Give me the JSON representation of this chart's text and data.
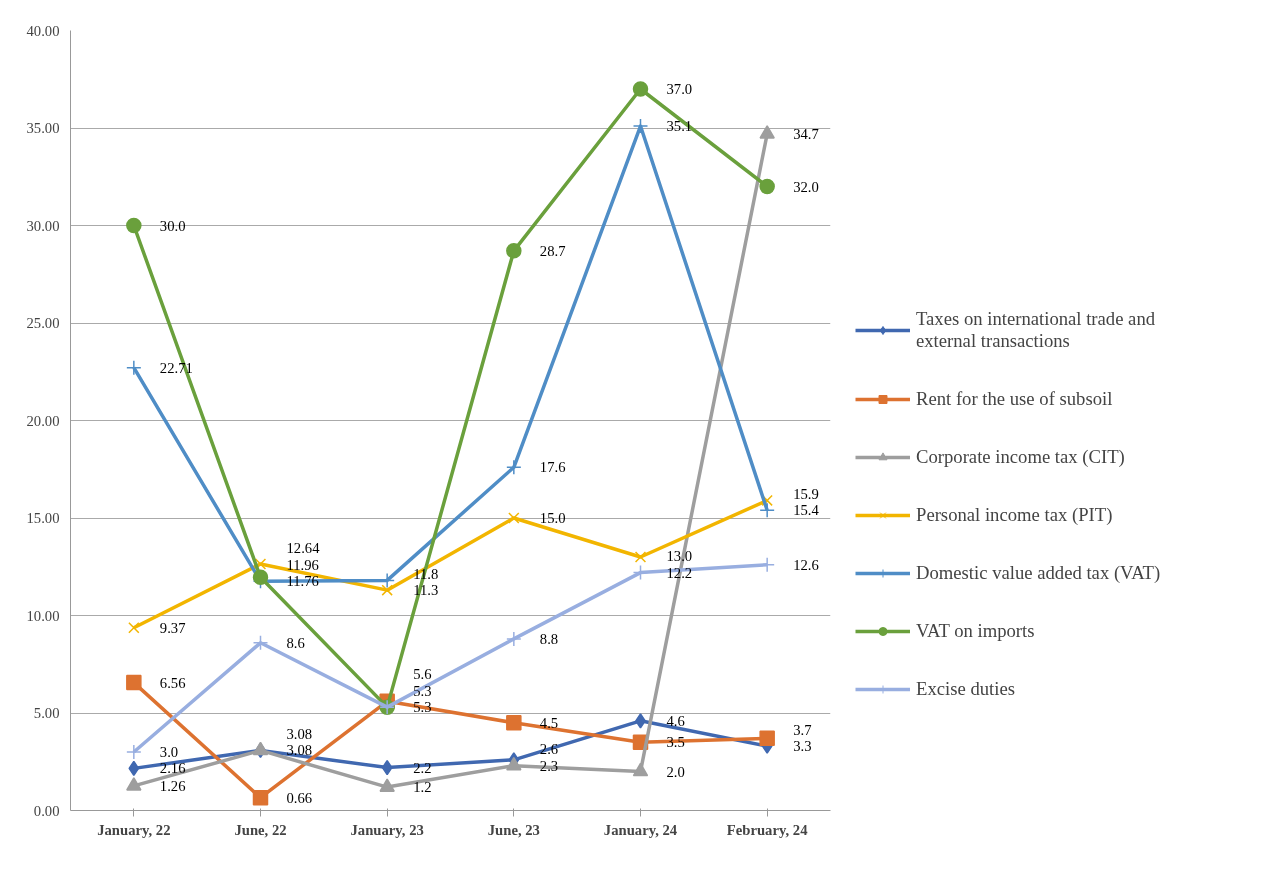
{
  "chart_data": {
    "type": "line",
    "categories": [
      "January, 22",
      "June, 22",
      "January, 23",
      "June, 23",
      "January, 24",
      "February, 24"
    ],
    "ylim": [
      0,
      40
    ],
    "yticks": [
      {
        "value": 0,
        "label": "0.00"
      },
      {
        "value": 5,
        "label": "5.00"
      },
      {
        "value": 10,
        "label": "10.00"
      },
      {
        "value": 15,
        "label": "15.00"
      },
      {
        "value": 20,
        "label": "20.00"
      },
      {
        "value": 25,
        "label": "25.00"
      },
      {
        "value": 30,
        "label": "30.00"
      },
      {
        "value": 35,
        "label": "35.00"
      },
      {
        "value": 40,
        "label": "40.00"
      }
    ],
    "grid": "y",
    "legend": "right",
    "line_style": "solid",
    "series": [
      {
        "name": "Taxes on international trade and external transactions",
        "color": "#4068b0",
        "marker": "diamond",
        "values": [
          2.16,
          3.08,
          2.2,
          2.6,
          4.6,
          3.3
        ],
        "value_labels": [
          "2.16",
          "3.08",
          "2.2",
          "2.6",
          "4.6",
          "3.3"
        ]
      },
      {
        "name": "Rent for the use of subsoil",
        "color": "#dd7230",
        "marker": "square",
        "values": [
          6.56,
          0.66,
          5.6,
          4.5,
          3.5,
          3.7
        ],
        "value_labels": [
          "6.56",
          "0.66",
          "5.6",
          "4.5",
          "3.5",
          "3.7"
        ]
      },
      {
        "name": "Corporate income tax (CIT)",
        "color": "#9e9e9e",
        "marker": "triangle",
        "values": [
          1.26,
          3.08,
          1.2,
          2.3,
          2.0,
          34.7
        ],
        "value_labels": [
          "1.26",
          "3.08",
          "1.2",
          "2.3",
          "2.0",
          "34.7"
        ]
      },
      {
        "name": "Personal income tax (PIT)",
        "color": "#f2b500",
        "marker": "x",
        "values": [
          9.37,
          12.64,
          11.3,
          15.0,
          13.0,
          15.9
        ],
        "value_labels": [
          "9.37",
          "12.64",
          "11.3",
          "15.0",
          "13.0",
          "15.9"
        ]
      },
      {
        "name": "Domestic value added tax (VAT)",
        "color": "#4f8dc6",
        "marker": "cross",
        "values": [
          22.71,
          11.76,
          11.8,
          17.6,
          35.1,
          15.4
        ],
        "value_labels": [
          "22.71",
          "11.76",
          "11.8",
          "17.6",
          "35.1",
          "15.4"
        ]
      },
      {
        "name": "VAT on imports",
        "color": "#6aa03c",
        "marker": "circle",
        "values": [
          30.0,
          11.96,
          5.3,
          28.7,
          37.0,
          32.0
        ],
        "value_labels": [
          "30.0",
          "11.96",
          "5.3",
          "28.7",
          "37.0",
          "32.0"
        ]
      },
      {
        "name": "Excise duties",
        "color": "#98aee0",
        "marker": "cross",
        "values": [
          3.0,
          8.6,
          5.3,
          8.8,
          12.2,
          12.6
        ],
        "value_labels": [
          "3.0",
          "8.6",
          "5.3",
          "8.8",
          "12.2",
          "12.6"
        ]
      }
    ]
  }
}
